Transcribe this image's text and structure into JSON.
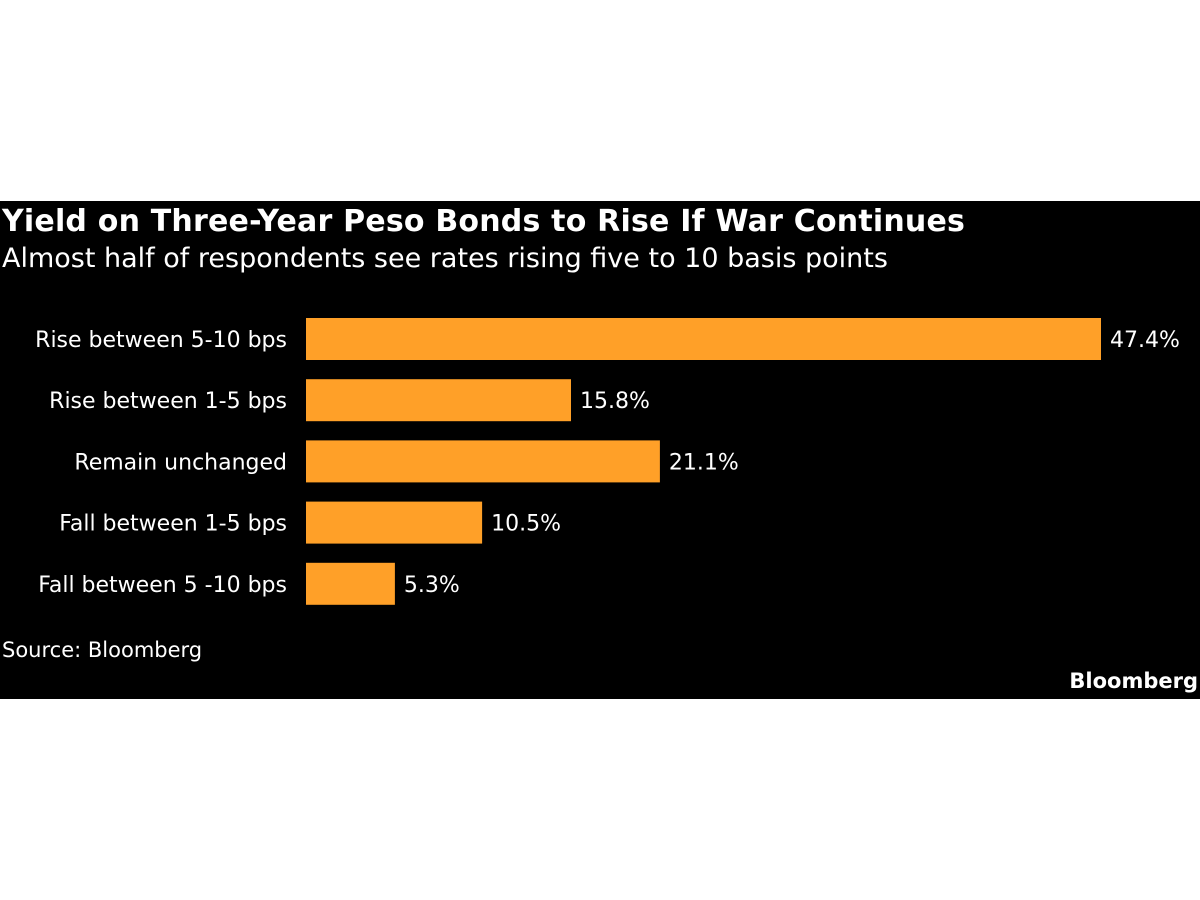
{
  "colors": {
    "background": "#000000",
    "bar": "#FFA028",
    "text": "#FFFFFF"
  },
  "chart_data": {
    "type": "bar",
    "orientation": "horizontal",
    "title": "Yield on Three-Year Peso Bonds to Rise If War Continues",
    "subtitle": "Almost half of respondents see rates rising five to 10 basis points",
    "categories": [
      "Rise between 5-10 bps",
      "Rise between 1-5 bps",
      "Remain unchanged",
      "Fall between 1-5 bps",
      "Fall between 5 -10 bps"
    ],
    "values": [
      47.4,
      15.8,
      21.1,
      10.5,
      5.3
    ],
    "value_labels": [
      "47.4%",
      "15.8%",
      "21.1%",
      "10.5%",
      "5.3%"
    ],
    "unit": "%",
    "grid": false,
    "legend": "none"
  },
  "source": "Source: Bloomberg",
  "logo_text": "Bloomberg"
}
